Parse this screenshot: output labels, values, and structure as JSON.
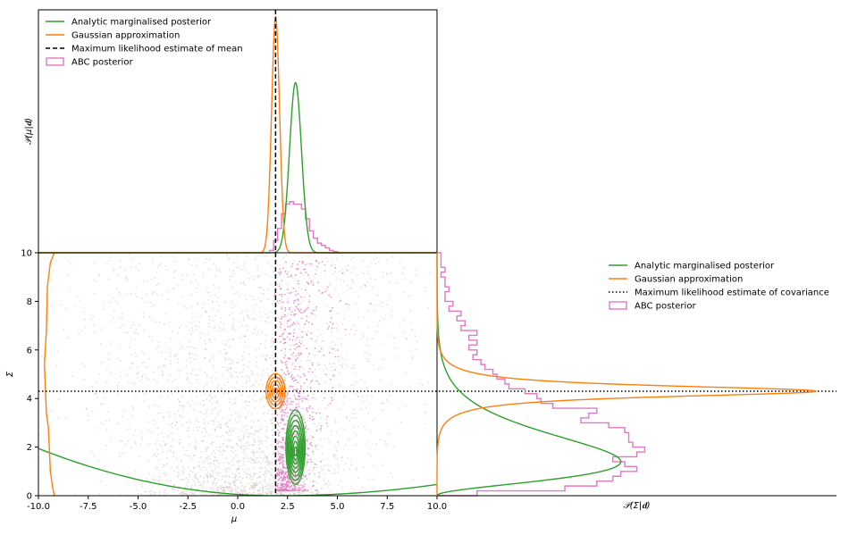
{
  "colors": {
    "analytic": "#2ca02c",
    "gaussian": "#ff7f0e",
    "mle": "#000000",
    "abc": "#e377c2",
    "scatter_background": "#bca7a2"
  },
  "chart_data": [
    {
      "id": "marginal-mu",
      "type": "line",
      "ylabel": "𝒫(μ|𝐝)",
      "xlim": [
        -10,
        10
      ],
      "legend_position": "top-left",
      "legend": [
        {
          "label": "Analytic marginalised posterior",
          "style": "line",
          "color": "#2ca02c"
        },
        {
          "label": "Gaussian approximation",
          "style": "line",
          "color": "#ff7f0e"
        },
        {
          "label": "Maximum likelihood estimate of mean",
          "style": "dashed",
          "color": "#000000"
        },
        {
          "label": "ABC posterior",
          "style": "box",
          "color": "#e377c2"
        }
      ],
      "series": [
        {
          "name": "Analytic marginalised posterior",
          "kind": "gaussian",
          "mean": 2.9,
          "sd": 0.3,
          "relative_height": 0.7
        },
        {
          "name": "Gaussian approximation",
          "kind": "gaussian",
          "mean": 1.9,
          "sd": 0.2,
          "relative_height": 0.97
        },
        {
          "name": "ABC posterior",
          "kind": "step-histogram",
          "bin_edges": [
            1.6,
            1.8,
            2.0,
            2.2,
            2.4,
            2.6,
            2.8,
            3.0,
            3.2,
            3.4,
            3.6,
            3.8,
            4.0,
            4.2,
            4.4,
            4.6,
            4.8,
            5.0,
            5.2
          ],
          "relative_heights": [
            0.01,
            0.05,
            0.1,
            0.16,
            0.2,
            0.21,
            0.2,
            0.2,
            0.18,
            0.14,
            0.09,
            0.06,
            0.04,
            0.03,
            0.02,
            0.01,
            0.005,
            0.0
          ]
        }
      ],
      "mle_mean": 1.9
    },
    {
      "id": "joint",
      "type": "scatter",
      "xlabel": "μ",
      "ylabel": "Σ",
      "xlim": [
        -10,
        10
      ],
      "ylim": [
        0,
        10
      ],
      "x_ticks": [
        "-10.0",
        "-7.5",
        "-5.0",
        "-2.5",
        "0.0",
        "2.5",
        "5.0",
        "7.5",
        "10.0"
      ],
      "x_tick_values": [
        -10,
        -7.5,
        -5,
        -2.5,
        0,
        2.5,
        5,
        7.5,
        10
      ],
      "y_ticks": [
        "0",
        "2",
        "4",
        "6",
        "8",
        "10"
      ],
      "y_tick_values": [
        0,
        2,
        4,
        6,
        8,
        10
      ],
      "mle_mean": 1.9,
      "mle_covariance": 4.3,
      "analytic_contours": {
        "center": [
          2.9,
          1.8
        ],
        "sd": [
          0.3,
          0.9
        ],
        "levels": 8
      },
      "gaussian_contours": {
        "center": [
          1.9,
          4.3
        ],
        "sd": [
          0.28,
          0.22
        ],
        "levels": 5
      },
      "abc_samples": {
        "x_range": [
          1.5,
          5.5
        ],
        "y_range": [
          0,
          10
        ],
        "peak_y": 1.5
      },
      "prior_samples": {
        "x_range": [
          -10,
          10
        ],
        "y_range": [
          0,
          10
        ]
      }
    },
    {
      "id": "marginal-sigma",
      "type": "line",
      "xlabel": "𝒫(Σ|𝐝)",
      "ylim": [
        0,
        10
      ],
      "legend_position": "top-right",
      "legend": [
        {
          "label": "Analytic marginalised posterior",
          "style": "line",
          "color": "#2ca02c"
        },
        {
          "label": "Gaussian approximation",
          "style": "line",
          "color": "#ff7f0e"
        },
        {
          "label": "Maximum likelihood estimate of covariance",
          "style": "dotted",
          "color": "#000000"
        },
        {
          "label": "ABC posterior",
          "style": "box",
          "color": "#e377c2"
        }
      ],
      "series": [
        {
          "name": "Analytic marginalised posterior",
          "kind": "skewed",
          "mode": 1.4,
          "relative_height": 0.46
        },
        {
          "name": "Gaussian approximation",
          "kind": "gaussian",
          "mean": 4.3,
          "sd": 0.22,
          "relative_height": 0.95
        },
        {
          "name": "ABC posterior",
          "kind": "step-histogram",
          "bin_edges": [
            0.0,
            0.2,
            0.4,
            0.6,
            0.8,
            1.0,
            1.2,
            1.4,
            1.6,
            1.8,
            2.0,
            2.2,
            2.4,
            2.6,
            2.8,
            3.0,
            3.2,
            3.4,
            3.6,
            3.8,
            4.0,
            4.2,
            4.4,
            4.6,
            4.8,
            5.0,
            5.2,
            5.4,
            5.6,
            5.8,
            6.0,
            6.2,
            6.4,
            6.6,
            6.8,
            7.0,
            7.2,
            7.4,
            7.6,
            7.8,
            8.0,
            8.2,
            8.4,
            8.6,
            8.8,
            9.0,
            9.2,
            9.4,
            9.6,
            9.8,
            10.0
          ],
          "relative_heights": [
            0.1,
            0.32,
            0.4,
            0.44,
            0.46,
            0.5,
            0.47,
            0.44,
            0.5,
            0.52,
            0.49,
            0.48,
            0.48,
            0.47,
            0.43,
            0.36,
            0.38,
            0.4,
            0.29,
            0.26,
            0.25,
            0.22,
            0.18,
            0.17,
            0.15,
            0.14,
            0.12,
            0.11,
            0.09,
            0.1,
            0.08,
            0.1,
            0.08,
            0.1,
            0.06,
            0.07,
            0.05,
            0.06,
            0.03,
            0.04,
            0.02,
            0.02,
            0.03,
            0.02,
            0.02,
            0.01,
            0.02,
            0.01,
            0.01,
            0.01
          ]
        }
      ],
      "mle_covariance": 4.3
    }
  ]
}
